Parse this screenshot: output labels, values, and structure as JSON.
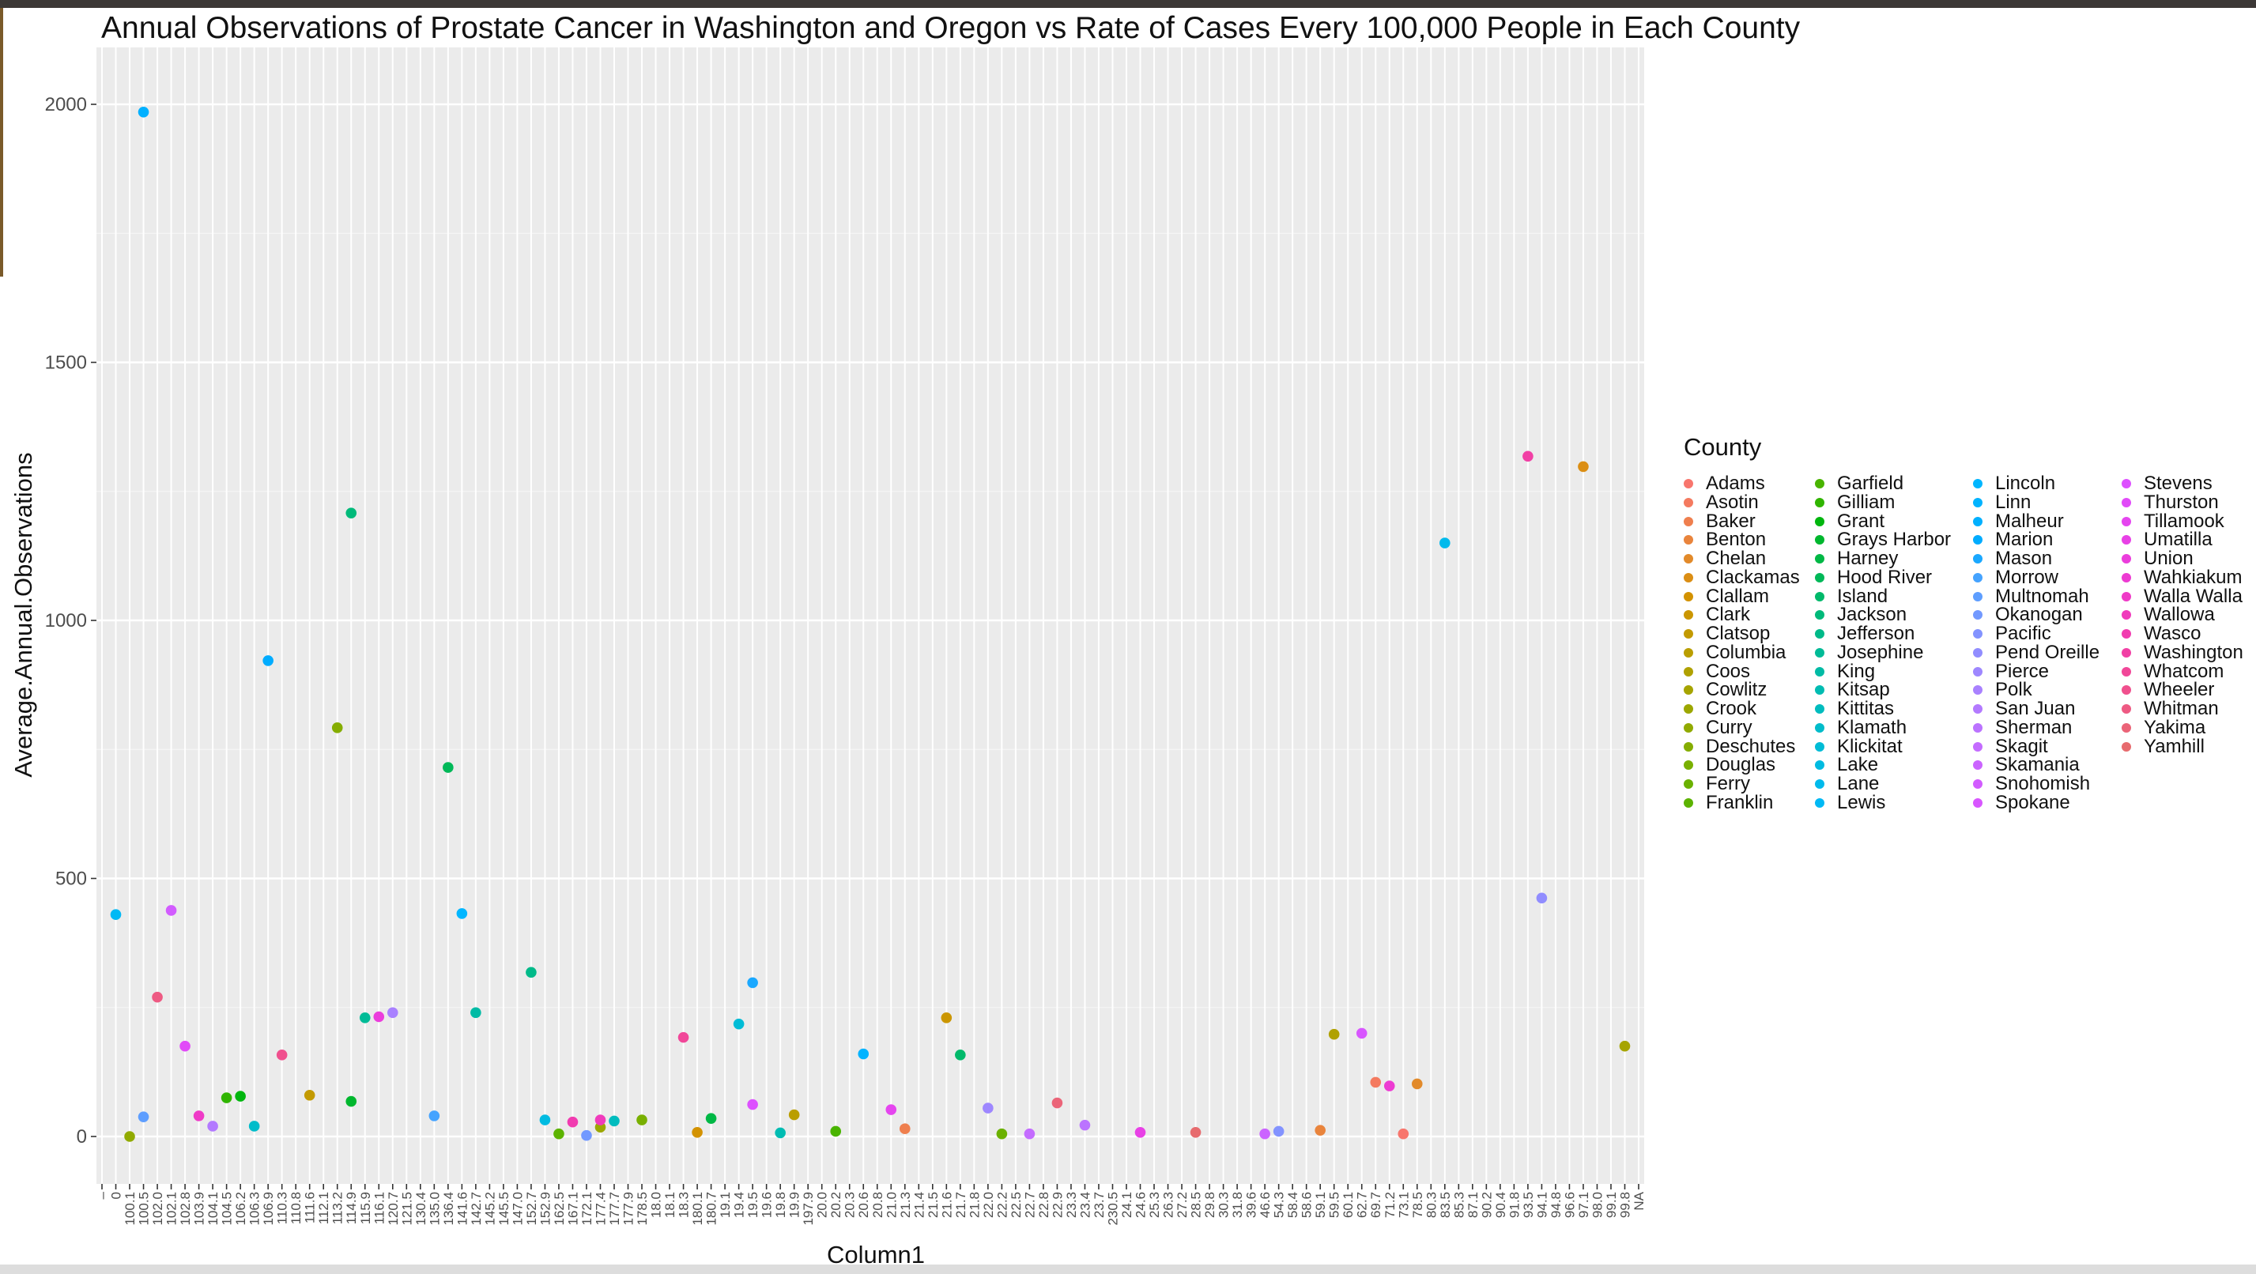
{
  "chart_data": {
    "type": "scatter",
    "title": "Annual Observations of Prostate Cancer in Washington and Oregon vs Rate of Cases Every 100,000 People in Each County",
    "xlabel": "Column1",
    "ylabel": "Average.Annual.Observations",
    "ylim": [
      -90,
      2080
    ],
    "yticks": [
      0,
      500,
      1000,
      1500,
      2000
    ],
    "grid": true,
    "legend_placement": "right",
    "legend_title": "County",
    "categories": [
      "–",
      "0",
      "100.1",
      "100.5",
      "102.0",
      "102.1",
      "102.8",
      "103.9",
      "104.1",
      "104.5",
      "106.2",
      "106.3",
      "106.9",
      "110.3",
      "110.8",
      "111.6",
      "112.1",
      "113.2",
      "114.9",
      "115.9",
      "116.1",
      "120.7",
      "121.5",
      "130.4",
      "135.0",
      "136.4",
      "141.6",
      "142.7",
      "145.2",
      "145.5",
      "147.0",
      "152.7",
      "152.9",
      "162.5",
      "167.1",
      "172.1",
      "177.4",
      "177.7",
      "177.9",
      "178.5",
      "18.0",
      "18.1",
      "18.3",
      "180.1",
      "180.7",
      "19.1",
      "19.4",
      "19.5",
      "19.6",
      "19.8",
      "19.9",
      "197.9",
      "20.0",
      "20.2",
      "20.3",
      "20.6",
      "20.8",
      "21.0",
      "21.3",
      "21.4",
      "21.5",
      "21.6",
      "21.7",
      "21.8",
      "22.0",
      "22.2",
      "22.5",
      "22.7",
      "22.8",
      "22.9",
      "23.3",
      "23.4",
      "23.7",
      "230.5",
      "24.1",
      "24.6",
      "25.3",
      "26.3",
      "27.2",
      "28.5",
      "29.8",
      "30.3",
      "31.8",
      "39.6",
      "46.6",
      "54.3",
      "58.4",
      "58.6",
      "59.1",
      "59.5",
      "60.1",
      "62.7",
      "69.7",
      "71.2",
      "73.1",
      "78.5",
      "80.3",
      "83.5",
      "85.3",
      "87.1",
      "90.2",
      "90.4",
      "91.8",
      "93.5",
      "94.1",
      "94.8",
      "96.6",
      "97.1",
      "98.0",
      "99.1",
      "99.8",
      "NA"
    ],
    "series": [
      {
        "name": "Adams",
        "color": "#F8766D",
        "points": [
          [
            94,
            5
          ]
        ]
      },
      {
        "name": "Asotin",
        "color": "#F47A5F",
        "points": [
          [
            92,
            105
          ]
        ]
      },
      {
        "name": "Baker",
        "color": "#EF7F4E",
        "points": [
          [
            58,
            15
          ]
        ]
      },
      {
        "name": "Benton",
        "color": "#E9843C",
        "points": [
          [
            88,
            12
          ]
        ]
      },
      {
        "name": "Chelan",
        "color": "#E28A2A",
        "points": [
          [
            95,
            102
          ]
        ]
      },
      {
        "name": "Clackamas",
        "color": "#DB8E14",
        "points": [
          [
            107,
            1298
          ]
        ]
      },
      {
        "name": "Clallam",
        "color": "#D39200",
        "points": [
          [
            43,
            8
          ]
        ]
      },
      {
        "name": "Clark",
        "color": "#CB9600",
        "points": [
          [
            61,
            230
          ]
        ]
      },
      {
        "name": "Clatsop",
        "color": "#C39A00",
        "points": [
          [
            15,
            80
          ]
        ]
      },
      {
        "name": "Columbia",
        "color": "#BA9E00",
        "points": [
          [
            50,
            42
          ]
        ]
      },
      {
        "name": "Coos",
        "color": "#B0A100",
        "points": [
          [
            89,
            198
          ]
        ]
      },
      {
        "name": "Cowlitz",
        "color": "#A6A400",
        "points": [
          [
            110,
            175
          ]
        ]
      },
      {
        "name": "Crook",
        "color": "#9CA700",
        "points": [
          [
            36,
            18
          ]
        ]
      },
      {
        "name": "Curry",
        "color": "#91AA00",
        "points": [
          [
            2,
            0
          ]
        ]
      },
      {
        "name": "Deschutes",
        "color": "#85AD00",
        "points": [
          [
            17,
            792
          ]
        ]
      },
      {
        "name": "Douglas",
        "color": "#79B000",
        "points": [
          [
            39,
            32
          ]
        ]
      },
      {
        "name": "Ferry",
        "color": "#6BB100",
        "points": [
          [
            65,
            5
          ]
        ]
      },
      {
        "name": "Franklin",
        "color": "#5CB300",
        "points": [
          [
            33,
            5
          ]
        ]
      },
      {
        "name": "Garfield",
        "color": "#49B400",
        "points": [
          [
            53,
            10
          ]
        ]
      },
      {
        "name": "Gilliam",
        "color": "#30B500",
        "points": [
          [
            9,
            75
          ]
        ]
      },
      {
        "name": "Grant",
        "color": "#00B60E",
        "points": [
          [
            10,
            78
          ]
        ]
      },
      {
        "name": "Grays Harbor",
        "color": "#00B72E",
        "points": [
          [
            18,
            68
          ]
        ]
      },
      {
        "name": "Harney",
        "color": "#00B845",
        "points": [
          [
            44,
            35
          ]
        ]
      },
      {
        "name": "Hood River",
        "color": "#00B858",
        "points": [
          [
            25,
            715
          ]
        ]
      },
      {
        "name": "Island",
        "color": "#00B96A",
        "points": [
          [
            62,
            158
          ]
        ]
      },
      {
        "name": "Jackson",
        "color": "#00BA7A",
        "points": [
          [
            18,
            1208
          ]
        ]
      },
      {
        "name": "Jefferson",
        "color": "#00BA89",
        "points": [
          [
            31,
            318
          ]
        ]
      },
      {
        "name": "Josephine",
        "color": "#00BB97",
        "points": [
          [
            19,
            230
          ]
        ]
      },
      {
        "name": "King",
        "color": "#00BBA5",
        "points": [
          [
            27,
            240
          ]
        ]
      },
      {
        "name": "Kitsap",
        "color": "#00BCB2",
        "points": [
          [
            49,
            7
          ]
        ]
      },
      {
        "name": "Kittitas",
        "color": "#00BCBE",
        "points": [
          [
            37,
            30
          ]
        ]
      },
      {
        "name": "Klamath",
        "color": "#00BCCA",
        "points": [
          [
            11,
            20
          ]
        ]
      },
      {
        "name": "Klickitat",
        "color": "#00BCD6",
        "points": [
          [
            46,
            218
          ]
        ]
      },
      {
        "name": "Lake",
        "color": "#00BBE1",
        "points": [
          [
            32,
            32
          ]
        ]
      },
      {
        "name": "Lane",
        "color": "#00BAEC",
        "points": [
          [
            97,
            1150
          ]
        ]
      },
      {
        "name": "Lewis",
        "color": "#00B9F5",
        "points": [
          [
            1,
            430
          ]
        ]
      },
      {
        "name": "Lincoln",
        "color": "#00B6FF",
        "points": [
          [
            26,
            432
          ]
        ]
      },
      {
        "name": "Linn",
        "color": "#00B3FF",
        "points": [
          [
            55,
            160
          ]
        ]
      },
      {
        "name": "Malheur",
        "color": "#00B0FF",
        "points": [
          [
            3,
            1985
          ]
        ]
      },
      {
        "name": "Marion",
        "color": "#00ACFF",
        "points": [
          [
            12,
            922
          ]
        ]
      },
      {
        "name": "Mason",
        "color": "#1AA8FF",
        "points": [
          [
            47,
            298
          ]
        ]
      },
      {
        "name": "Morrow",
        "color": "#45A3FF",
        "points": [
          [
            24,
            40
          ]
        ]
      },
      {
        "name": "Multnomah",
        "color": "#5E9EFF",
        "points": [
          [
            3,
            38
          ]
        ]
      },
      {
        "name": "Okanogan",
        "color": "#7299FF",
        "points": [
          [
            35,
            2
          ]
        ]
      },
      {
        "name": "Pacific",
        "color": "#8393FF",
        "points": [
          [
            85,
            10
          ]
        ]
      },
      {
        "name": "Pend Oreille",
        "color": "#918DFF",
        "points": [
          [
            104,
            462
          ]
        ]
      },
      {
        "name": "Pierce",
        "color": "#9E87FF",
        "points": [
          [
            64,
            55
          ]
        ]
      },
      {
        "name": "Polk",
        "color": "#A981FF",
        "points": [
          [
            21,
            240
          ]
        ]
      },
      {
        "name": "San Juan",
        "color": "#B37AFF",
        "points": [
          [
            8,
            20
          ]
        ]
      },
      {
        "name": "Sherman",
        "color": "#BB73FF",
        "points": [
          [
            71,
            22
          ]
        ]
      },
      {
        "name": "Skagit",
        "color": "#C46CFF",
        "points": [
          [
            67,
            5
          ]
        ]
      },
      {
        "name": "Skamania",
        "color": "#CB64FF",
        "points": [
          [
            84,
            5
          ]
        ]
      },
      {
        "name": "Snohomish",
        "color": "#D25CFF",
        "points": [
          [
            5,
            438
          ]
        ]
      },
      {
        "name": "Spokane",
        "color": "#D856FF",
        "points": [
          [
            91,
            200
          ]
        ]
      },
      {
        "name": "Stevens",
        "color": "#DD50FF",
        "points": [
          [
            47,
            62
          ]
        ]
      },
      {
        "name": "Thurston",
        "color": "#E14AF8",
        "points": [
          [
            6,
            175
          ]
        ]
      },
      {
        "name": "Tillamook",
        "color": "#E545EF",
        "points": [
          [
            57,
            52
          ]
        ]
      },
      {
        "name": "Umatilla",
        "color": "#E841E6",
        "points": [
          [
            75,
            8
          ]
        ]
      },
      {
        "name": "Union",
        "color": "#EB3DDC",
        "points": [
          [
            20,
            232
          ]
        ]
      },
      {
        "name": "Wahkiakum",
        "color": "#ED3BD2",
        "points": [
          [
            93,
            98
          ]
        ]
      },
      {
        "name": "Walla Walla",
        "color": "#EF3AC7",
        "points": [
          [
            7,
            40
          ]
        ]
      },
      {
        "name": "Wallowa",
        "color": "#F03ABC",
        "points": [
          [
            36,
            32
          ]
        ]
      },
      {
        "name": "Wasco",
        "color": "#F13CB0",
        "points": [
          [
            34,
            28
          ]
        ]
      },
      {
        "name": "Washington",
        "color": "#F140A5",
        "points": [
          [
            103,
            1318
          ]
        ]
      },
      {
        "name": "Whatcom",
        "color": "#F14799",
        "points": [
          [
            42,
            192
          ]
        ]
      },
      {
        "name": "Wheeler",
        "color": "#F0508E",
        "points": [
          [
            13,
            158
          ]
        ]
      },
      {
        "name": "Whitman",
        "color": "#EE5A83",
        "points": [
          [
            4,
            270
          ]
        ]
      },
      {
        "name": "Yakima",
        "color": "#EB6478",
        "points": [
          [
            69,
            65
          ]
        ]
      },
      {
        "name": "Yamhill",
        "color": "#E76B6E",
        "points": [
          [
            79,
            8
          ]
        ]
      }
    ]
  }
}
